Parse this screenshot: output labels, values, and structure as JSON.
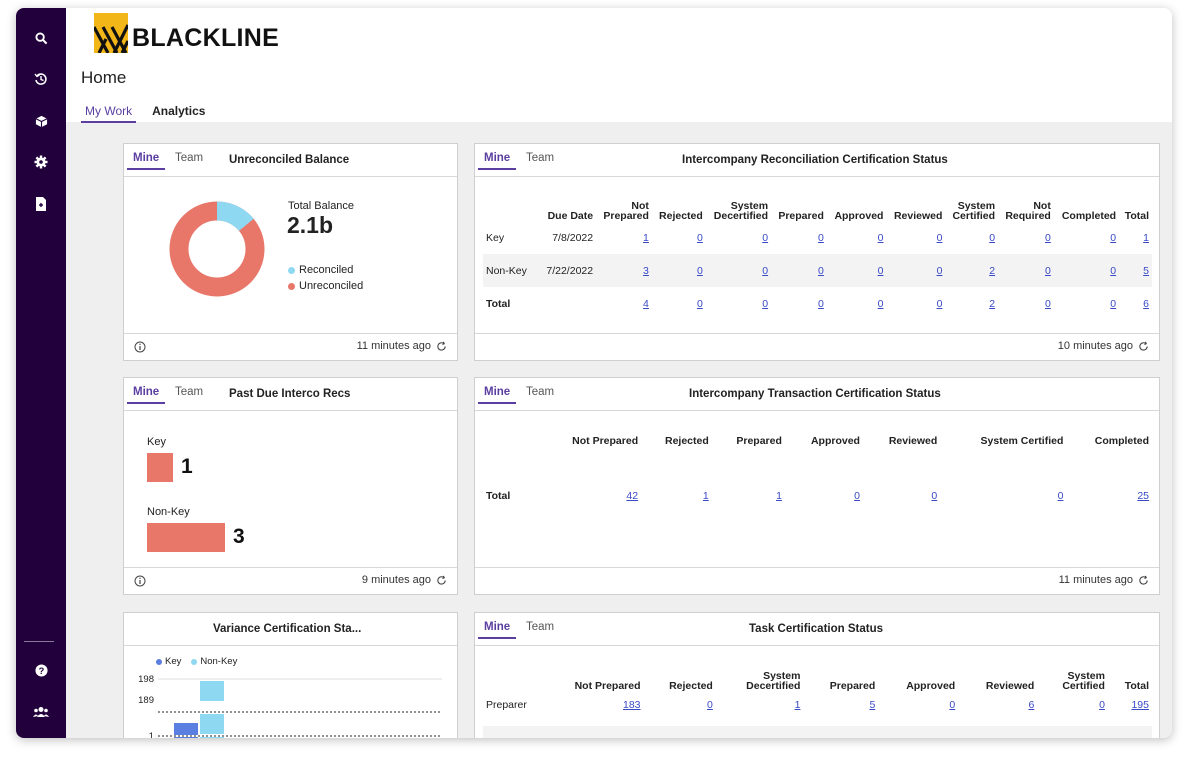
{
  "app": {
    "logo_text": "BLACKLINE"
  },
  "sidebar": {
    "icons": [
      "search-icon",
      "history-icon",
      "cube-icon",
      "gear-icon",
      "document-icon",
      "help-icon",
      "users-icon"
    ]
  },
  "header": {
    "title": "Home",
    "tabs": [
      {
        "label": "My Work",
        "active": true
      },
      {
        "label": "Analytics",
        "active": false
      }
    ]
  },
  "common": {
    "mine": "Mine",
    "team": "Team"
  },
  "unreconciled": {
    "title": "Unreconciled Balance",
    "total_label": "Total Balance",
    "total_value": "2.1b",
    "legend": [
      {
        "label": "Reconciled",
        "color": "#8fd8f2"
      },
      {
        "label": "Unreconciled",
        "color": "#e8776a"
      }
    ],
    "reconciled_fraction": 0.14,
    "updated": "11 minutes ago"
  },
  "interco_recon": {
    "title": "Intercompany Reconciliation Certification Status",
    "headers": [
      "",
      "Due Date",
      "Not Prepared",
      "Rejected",
      "System Decertified",
      "Prepared",
      "Approved",
      "Reviewed",
      "System Certified",
      "Not Required",
      "Completed",
      "Total"
    ],
    "rows": [
      {
        "label": "Key",
        "due": "7/8/2022",
        "values": [
          "1",
          "0",
          "0",
          "0",
          "0",
          "0",
          "0",
          "0",
          "0",
          "1"
        ]
      },
      {
        "label": "Non-Key",
        "due": "7/22/2022",
        "values": [
          "3",
          "0",
          "0",
          "0",
          "0",
          "0",
          "2",
          "0",
          "0",
          "5"
        ]
      },
      {
        "label": "Total",
        "due": "",
        "values": [
          "4",
          "0",
          "0",
          "0",
          "0",
          "0",
          "2",
          "0",
          "0",
          "6"
        ]
      }
    ],
    "updated": "10 minutes ago"
  },
  "past_due": {
    "title": "Past Due Interco Recs",
    "items": [
      {
        "label": "Key",
        "value": 1
      },
      {
        "label": "Non-Key",
        "value": 3
      }
    ],
    "updated": "9 minutes ago"
  },
  "interco_trans": {
    "title": "Intercompany Transaction Certification Status",
    "headers": [
      "",
      "Not Prepared",
      "Rejected",
      "Prepared",
      "Approved",
      "Reviewed",
      "System Certified",
      "Completed"
    ],
    "row": {
      "label": "Total",
      "values": [
        "42",
        "1",
        "1",
        "0",
        "0",
        "0",
        "25"
      ]
    },
    "updated": "11 minutes ago"
  },
  "variance": {
    "title": "Variance Certification Sta...",
    "legend": [
      {
        "label": "Key",
        "color": "#5b7fe0"
      },
      {
        "label": "Non-Key",
        "color": "#8fd8f2"
      }
    ],
    "ticks": [
      "198",
      "189",
      "1"
    ]
  },
  "task_cert": {
    "title": "Task Certification Status",
    "headers": [
      "",
      "Not Prepared",
      "Rejected",
      "System Decertified",
      "Prepared",
      "Approved",
      "Reviewed",
      "System Certified",
      "Total"
    ],
    "row": {
      "label": "Preparer",
      "values": [
        "183",
        "0",
        "1",
        "5",
        "0",
        "6",
        "0",
        "195"
      ]
    }
  }
}
